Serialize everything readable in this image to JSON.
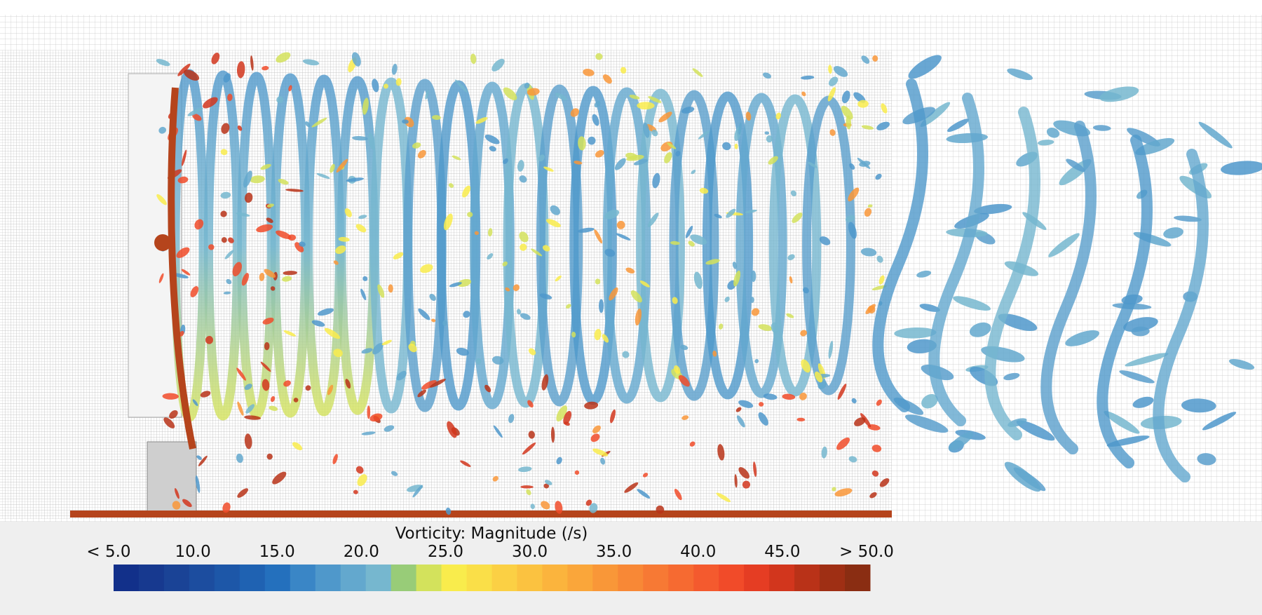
{
  "legend": {
    "title": "Vorticity: Magnitude (/s)",
    "tick_labels": [
      "< 5.0",
      "10.0",
      "15.0",
      "20.0",
      "25.0",
      "30.0",
      "35.0",
      "40.0",
      "45.0",
      "> 50.0"
    ],
    "colors": [
      "#12308a",
      "#17398f",
      "#1a4396",
      "#1c4d9f",
      "#1d57a8",
      "#1f62b2",
      "#2470bd",
      "#3a86c6",
      "#4f98cb",
      "#63a8ce",
      "#76b7cf",
      "#98cc78",
      "#d3e25c",
      "#f9ec4c",
      "#fadf48",
      "#fbd044",
      "#fbc240",
      "#fbb43d",
      "#faa63a",
      "#f99738",
      "#f88836",
      "#f77934",
      "#f66a31",
      "#f45a2e",
      "#f14b29",
      "#e53d23",
      "#d2361d",
      "#b93218",
      "#9f2f14",
      "#8a2d12"
    ]
  }
}
